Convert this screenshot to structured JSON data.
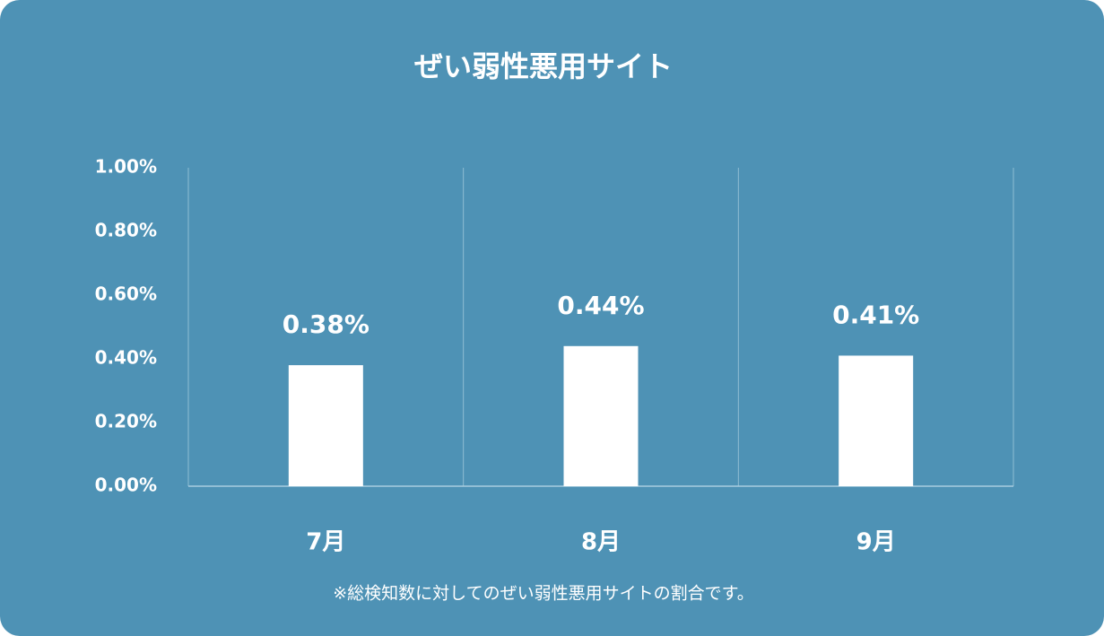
{
  "chart_data": {
    "type": "bar",
    "title": "ぜい弱性悪用サイト",
    "categories": [
      "7月",
      "8月",
      "9月"
    ],
    "values": [
      0.38,
      0.44,
      0.41
    ],
    "value_labels": [
      "0.38%",
      "0.44%",
      "0.41%"
    ],
    "color": "#ffffff",
    "ylim": [
      0,
      1
    ],
    "yticks": [
      {
        "value": 0,
        "label": "0.00%"
      },
      {
        "value": 0.2,
        "label": "0.20%"
      },
      {
        "value": 0.4,
        "label": "0.40%"
      },
      {
        "value": 0.6,
        "label": "0.60%"
      },
      {
        "value": 0.8,
        "label": "0.80%"
      },
      {
        "value": 1,
        "label": "1.00%"
      }
    ],
    "note": "※総検知数に対してのぜい弱性悪用サイトの割合です。"
  }
}
